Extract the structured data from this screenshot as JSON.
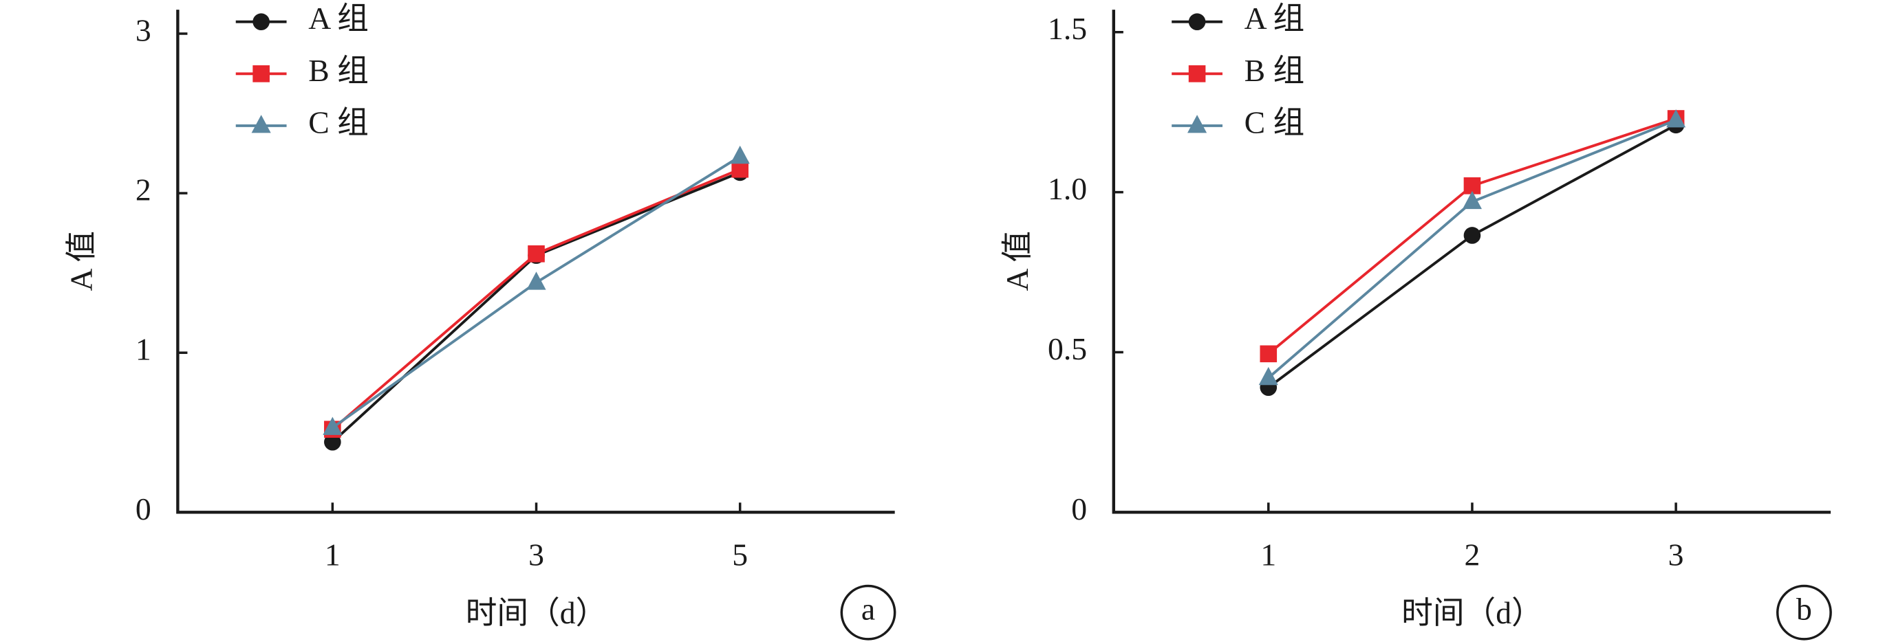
{
  "chart_data": [
    {
      "type": "line",
      "panel_label": "a",
      "xlabel": "时间（d）",
      "ylabel": "A 值",
      "categories": [
        "1",
        "3",
        "5"
      ],
      "series": [
        {
          "name": "A 组",
          "color": "#1a1a1a",
          "marker": "circle",
          "values": [
            0.44,
            1.61,
            2.13
          ]
        },
        {
          "name": "B 组",
          "color": "#e8262d",
          "marker": "square",
          "values": [
            0.52,
            1.62,
            2.15
          ]
        },
        {
          "name": "C 组",
          "color": "#5b87a0",
          "marker": "triangle",
          "values": [
            0.53,
            1.44,
            2.23
          ]
        }
      ],
      "ylim": [
        0,
        3.15
      ],
      "yticks": [
        0,
        1,
        2,
        3
      ],
      "grid": false,
      "legend": "upper left"
    },
    {
      "type": "line",
      "panel_label": "b",
      "xlabel": "时间（d）",
      "ylabel": "A 值",
      "categories": [
        "1",
        "2",
        "3"
      ],
      "series": [
        {
          "name": "A 组",
          "color": "#1a1a1a",
          "marker": "circle",
          "values": [
            0.39,
            0.865,
            1.21
          ]
        },
        {
          "name": "B 组",
          "color": "#e8262d",
          "marker": "square",
          "values": [
            0.495,
            1.02,
            1.23
          ]
        },
        {
          "name": "C 组",
          "color": "#5b87a0",
          "marker": "triangle",
          "values": [
            0.42,
            0.97,
            1.225
          ]
        }
      ],
      "ylim": [
        0,
        1.57
      ],
      "yticks": [
        0,
        {
          "value": 0.5,
          "label": "0.5"
        },
        {
          "value": 1.0,
          "label": "1.0"
        },
        {
          "value": 1.5,
          "label": "1.5"
        }
      ],
      "grid": false,
      "legend": "upper left"
    }
  ]
}
